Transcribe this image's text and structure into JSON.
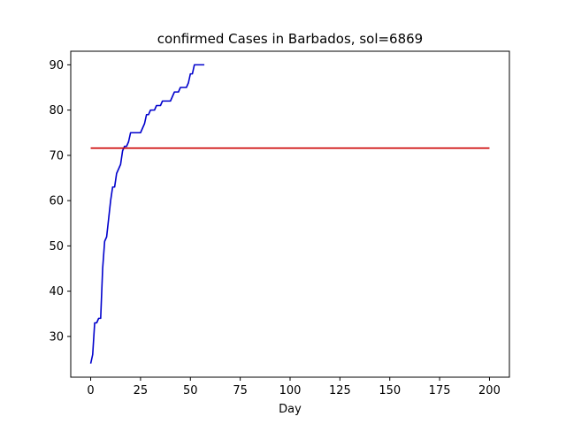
{
  "chart_data": {
    "type": "line",
    "title": "confirmed Cases in Barbados, sol=6869",
    "xlabel": "Day",
    "ylabel": "",
    "xlim": [
      -10,
      210
    ],
    "ylim": [
      21,
      93
    ],
    "xticks": [
      0,
      25,
      50,
      75,
      100,
      125,
      150,
      175,
      200
    ],
    "yticks": [
      30,
      40,
      50,
      60,
      70,
      80,
      90
    ],
    "grid": false,
    "series": [
      {
        "color": "#0000cc",
        "x": [
          0,
          1,
          2,
          3,
          4,
          5,
          6,
          7,
          8,
          9,
          10,
          11,
          12,
          13,
          14,
          15,
          16,
          17,
          18,
          19,
          20,
          21,
          22,
          23,
          24,
          25,
          26,
          27,
          28,
          29,
          30,
          31,
          32,
          33,
          34,
          35,
          36,
          37,
          38,
          39,
          40,
          41,
          42,
          43,
          44,
          45,
          46,
          47,
          48,
          49,
          50,
          51,
          52,
          53,
          54,
          55,
          56,
          57
        ],
        "y": [
          24,
          26,
          33,
          33,
          34,
          34,
          45,
          51,
          52,
          56,
          60,
          63,
          63,
          66,
          67,
          68,
          71,
          72,
          72,
          73,
          75,
          75,
          75,
          75,
          75,
          75,
          76,
          77,
          79,
          79,
          80,
          80,
          80,
          81,
          81,
          81,
          82,
          82,
          82,
          82,
          82,
          83,
          84,
          84,
          84,
          85,
          85,
          85,
          85,
          86,
          88,
          88,
          90,
          90,
          90,
          90,
          90,
          90
        ]
      },
      {
        "color": "#cc0000",
        "x": [
          0,
          200
        ],
        "y": [
          71.6,
          71.6
        ]
      }
    ]
  }
}
